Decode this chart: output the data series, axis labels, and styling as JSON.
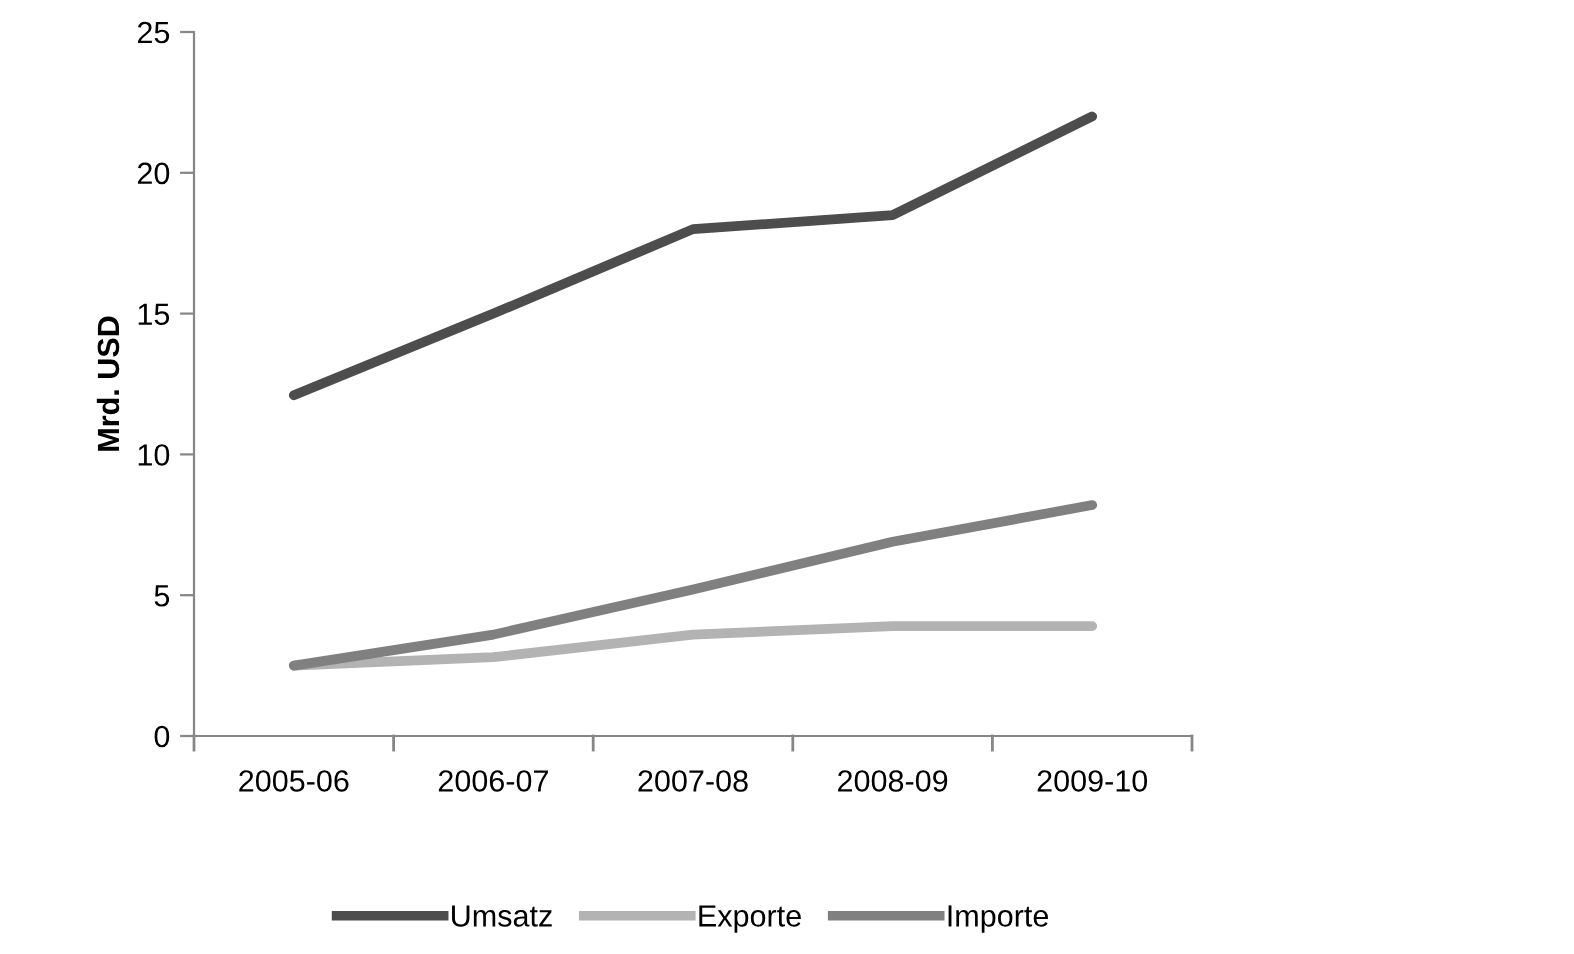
{
  "chart_data": {
    "type": "line",
    "ylabel": "Mrd. USD",
    "categories": [
      "2005-06",
      "2006-07",
      "2007-08",
      "2008-09",
      "2009-10"
    ],
    "series": [
      {
        "name": "Umsatz",
        "color": "#4d4d4d",
        "values": [
          12.1,
          15,
          18,
          18.5,
          22
        ]
      },
      {
        "name": "Exporte",
        "color": "#b3b3b3",
        "values": [
          2.5,
          2.8,
          3.6,
          3.9,
          3.9
        ]
      },
      {
        "name": "Importe",
        "color": "#808080",
        "values": [
          2.5,
          3.6,
          5.2,
          6.9,
          8.2
        ]
      }
    ],
    "ylim": [
      0,
      25
    ],
    "yticks": [
      0,
      5,
      10,
      15,
      20,
      25
    ],
    "grid": false,
    "legend": "bottom",
    "marker": "none",
    "line_style": "solid"
  }
}
